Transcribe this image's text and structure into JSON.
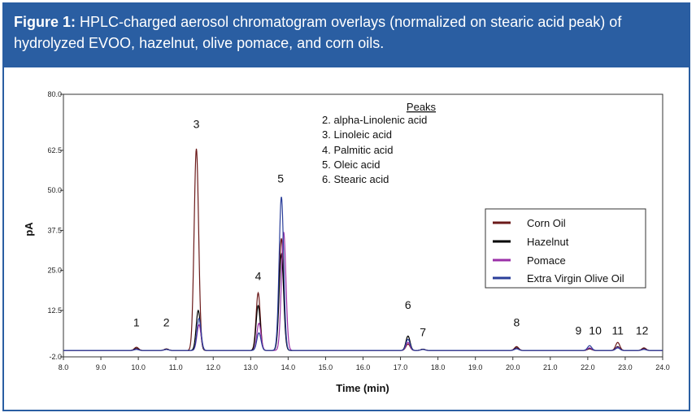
{
  "caption": {
    "label": "Figure 1:",
    "text": " HPLC-charged aerosol chromatogram overlays (normalized on stearic acid peak) of hydrolyzed EVOO, hazelnut, olive pomace, and corn oils."
  },
  "chart_data": {
    "type": "line",
    "xlabel": "Time (min)",
    "ylabel": "pA",
    "xlim": [
      8.0,
      24.0
    ],
    "ylim": [
      -2.0,
      80.0
    ],
    "x_ticks": [
      "8.0",
      "9.0",
      "10.0",
      "11.0",
      "12.0",
      "13.0",
      "14.0",
      "15.0",
      "16.0",
      "17.0",
      "18.0",
      "19.0",
      "20.0",
      "21.0",
      "22.0",
      "23.0",
      "24.0"
    ],
    "y_ticks": [
      "80.0",
      "62.5",
      "50.0",
      "37.5",
      "25.0",
      "12.5",
      "-2.0"
    ],
    "y_tick_values": [
      80.0,
      62.5,
      50.0,
      37.5,
      25.0,
      12.5,
      -2.0
    ],
    "peaks_box": {
      "title": "Peaks",
      "items": [
        "2. alpha-Linolenic acid",
        "3. Linoleic acid",
        "4. Palmitic acid",
        "5. Oleic acid",
        "6. Stearic acid"
      ]
    },
    "peak_labels": [
      {
        "text": "1",
        "x": 9.95,
        "y": 7.5
      },
      {
        "text": "2",
        "x": 10.75,
        "y": 7.5
      },
      {
        "text": "3",
        "x": 11.55,
        "y": 69.5
      },
      {
        "text": "4",
        "x": 13.2,
        "y": 22.0
      },
      {
        "text": "5",
        "x": 13.8,
        "y": 52.5
      },
      {
        "text": "6",
        "x": 17.2,
        "y": 13.0
      },
      {
        "text": "7",
        "x": 17.6,
        "y": 4.5
      },
      {
        "text": "8",
        "x": 20.1,
        "y": 7.5
      },
      {
        "text": "9",
        "x": 21.75,
        "y": 5.0
      },
      {
        "text": "10",
        "x": 22.2,
        "y": 5.0
      },
      {
        "text": "11",
        "x": 22.8,
        "y": 5.0
      },
      {
        "text": "12",
        "x": 23.45,
        "y": 5.0
      }
    ],
    "legend": {
      "placement": "right",
      "entries": [
        {
          "name": "Corn Oil",
          "color": "#6b1a1a"
        },
        {
          "name": "Hazelnut",
          "color": "#000000"
        },
        {
          "name": "Pomace",
          "color": "#9b30a8"
        },
        {
          "name": "Extra Virgin Olive Oil",
          "color": "#2b3f9a"
        }
      ]
    },
    "baseline": 0.0,
    "series": [
      {
        "name": "Corn Oil",
        "color": "#6b1a1a",
        "peaks": [
          [
            9.95,
            1.0
          ],
          [
            10.75,
            0.5
          ],
          [
            11.55,
            63.0
          ],
          [
            13.2,
            18.0
          ],
          [
            13.82,
            35.0
          ],
          [
            17.2,
            2.0
          ],
          [
            17.6,
            0.4
          ],
          [
            20.1,
            1.2
          ],
          [
            22.05,
            0.5
          ],
          [
            22.8,
            2.5
          ],
          [
            23.5,
            0.8
          ]
        ]
      },
      {
        "name": "Hazelnut",
        "color": "#000000",
        "peaks": [
          [
            9.95,
            0.6
          ],
          [
            10.75,
            0.4
          ],
          [
            11.6,
            12.5
          ],
          [
            13.2,
            14.0
          ],
          [
            13.82,
            30.0
          ],
          [
            17.2,
            4.5
          ],
          [
            17.6,
            0.4
          ],
          [
            20.1,
            0.8
          ],
          [
            22.05,
            0.6
          ],
          [
            22.8,
            1.2
          ],
          [
            23.5,
            0.5
          ]
        ]
      },
      {
        "name": "Pomace",
        "color": "#9b30a8",
        "peaks": [
          [
            9.95,
            0.4
          ],
          [
            10.75,
            0.3
          ],
          [
            11.62,
            8.0
          ],
          [
            13.22,
            8.5
          ],
          [
            13.88,
            37.0
          ],
          [
            17.2,
            2.5
          ],
          [
            17.6,
            0.3
          ],
          [
            20.1,
            0.6
          ],
          [
            22.05,
            0.8
          ],
          [
            22.8,
            1.0
          ],
          [
            23.5,
            0.4
          ]
        ]
      },
      {
        "name": "Extra Virgin Olive Oil",
        "color": "#2b3f9a",
        "peaks": [
          [
            9.95,
            0.3
          ],
          [
            10.75,
            0.3
          ],
          [
            11.62,
            10.0
          ],
          [
            13.22,
            5.5
          ],
          [
            13.82,
            48.0
          ],
          [
            17.2,
            3.5
          ],
          [
            17.6,
            0.3
          ],
          [
            20.1,
            0.5
          ],
          [
            22.05,
            1.5
          ],
          [
            22.8,
            0.8
          ],
          [
            23.5,
            0.3
          ]
        ]
      }
    ]
  }
}
